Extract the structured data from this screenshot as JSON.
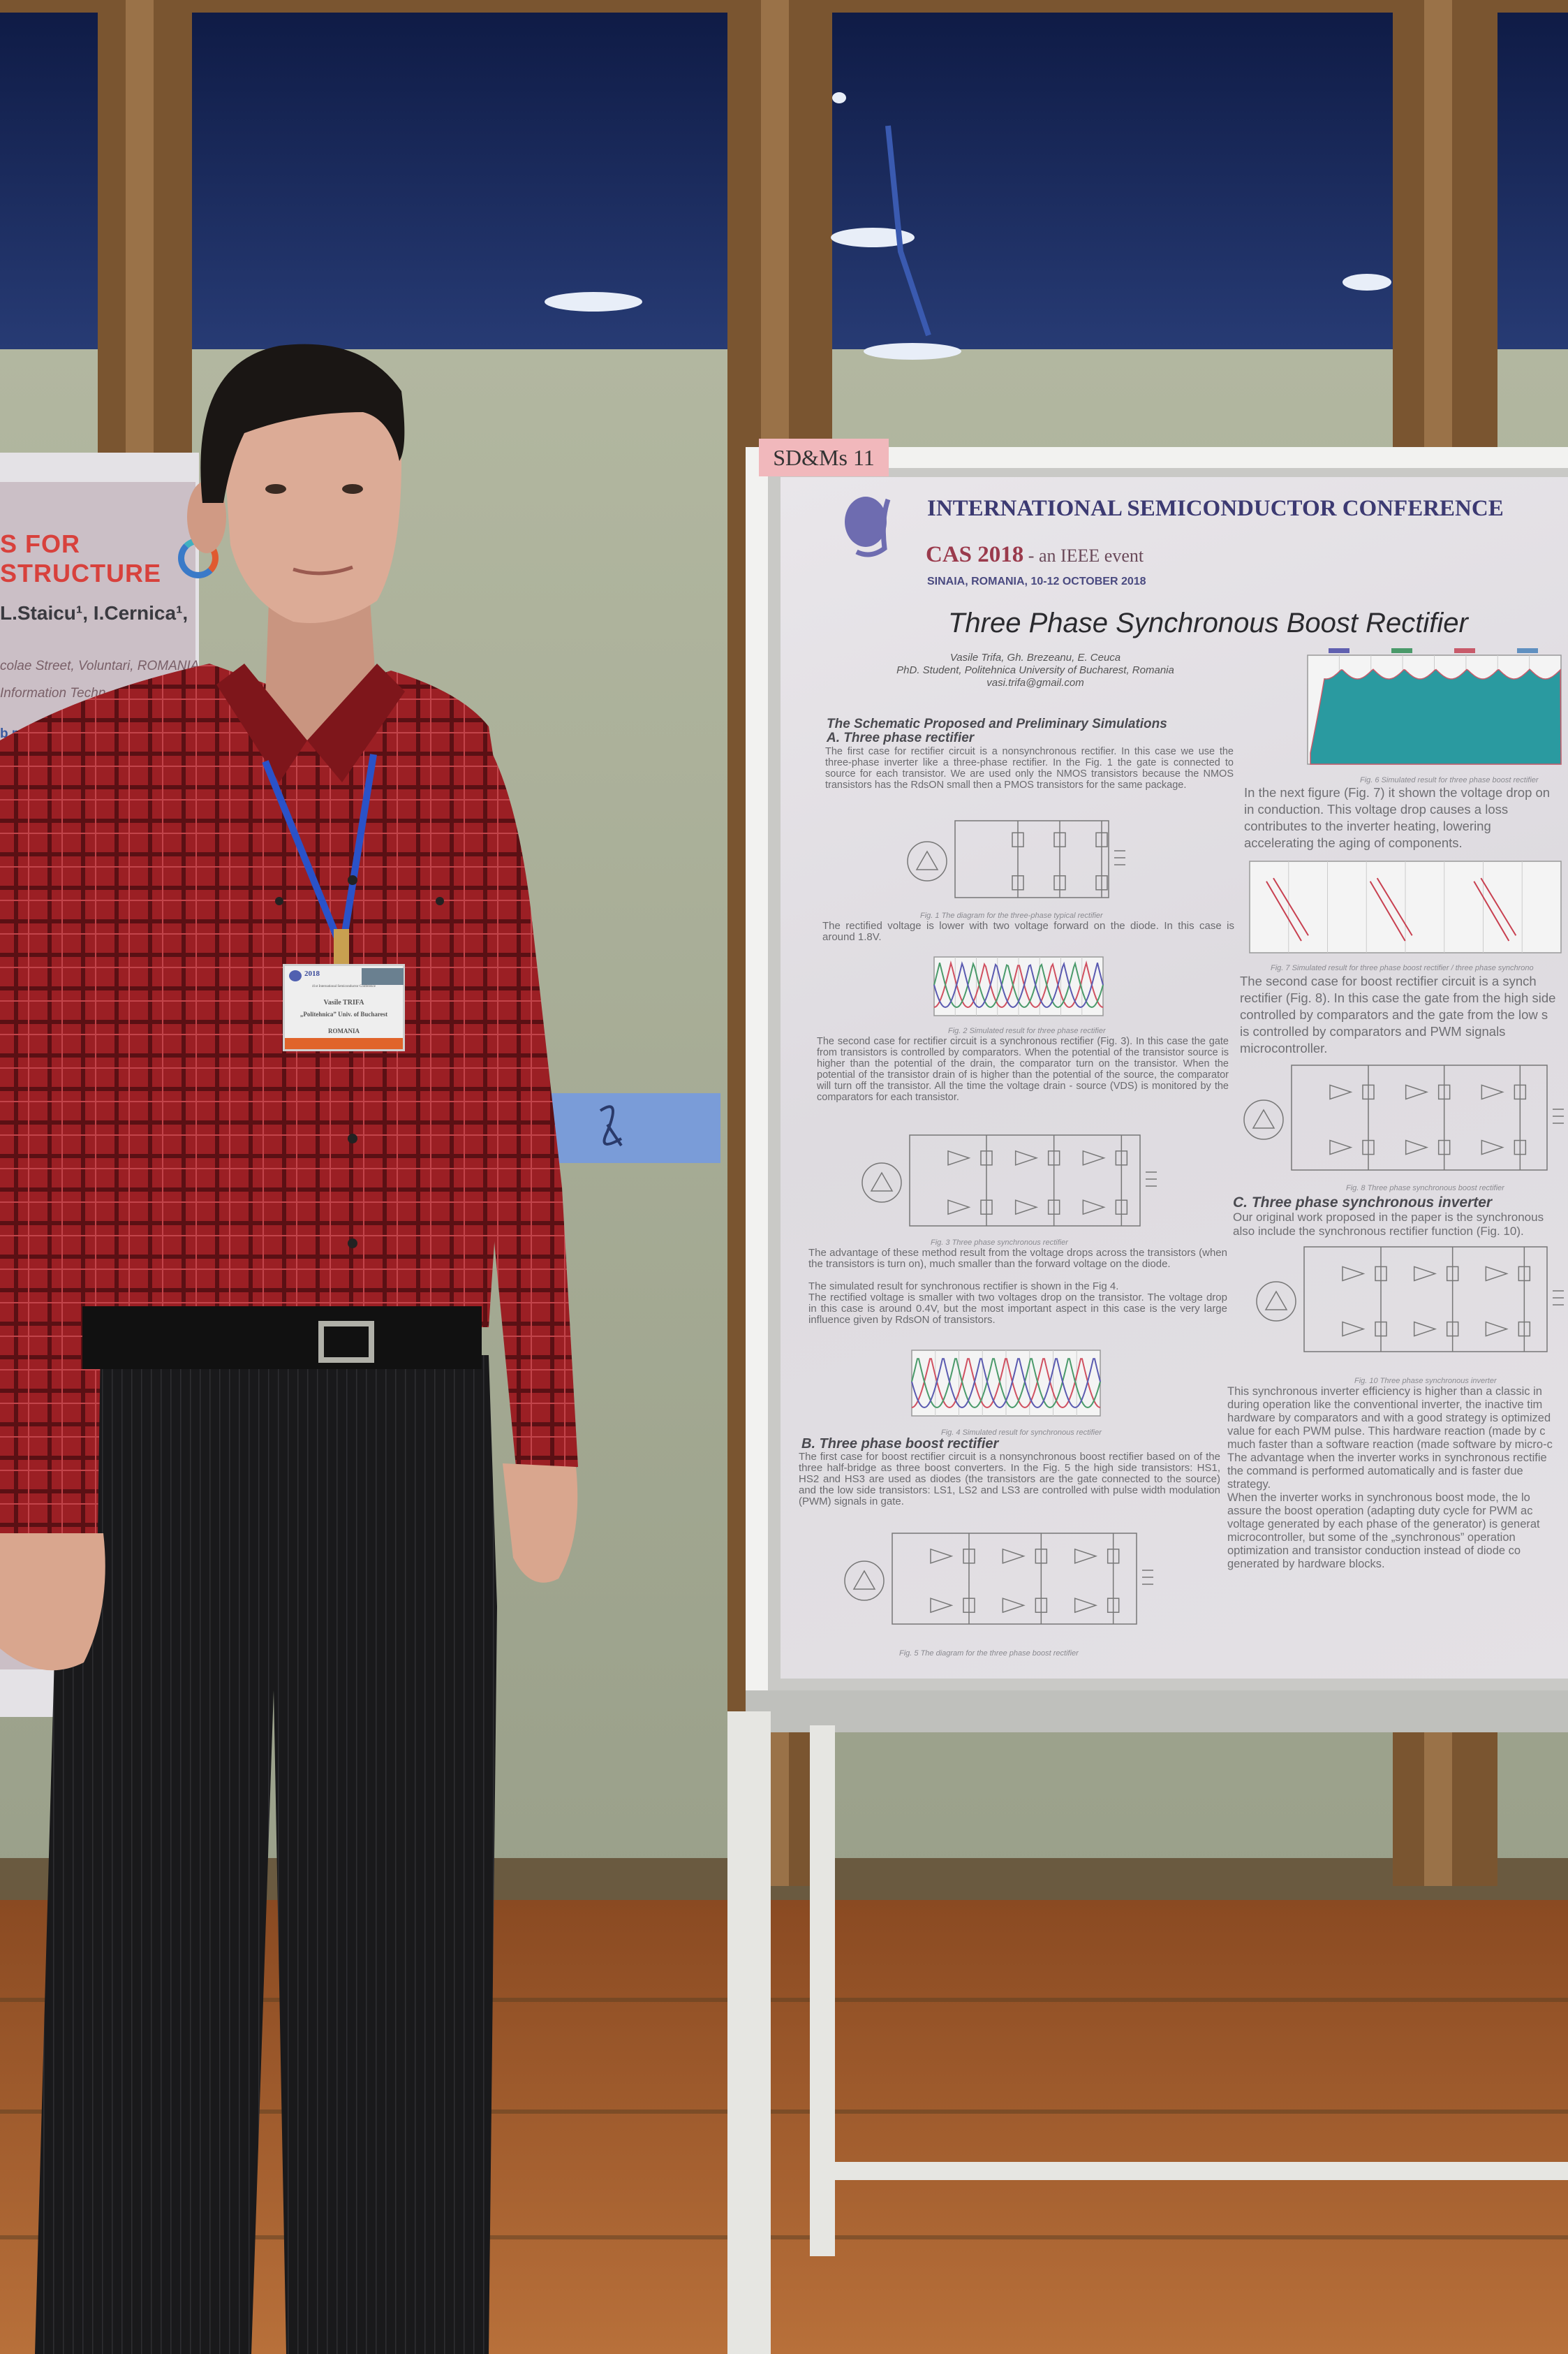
{
  "scene": {
    "colors": {
      "shirt": "#9b1f24",
      "pants": "#1a1a1c",
      "wall": "#a9ae98",
      "glass": "#1d2c5c",
      "floor": "#a05a2a",
      "frame": "#7a5530"
    }
  },
  "left_poster": {
    "title_line1": "S FOR",
    "title_line2": "STRUCTURE",
    "authors": "L.Staicu¹, I.Cernica¹,",
    "address": "colae Street, Voluntari, ROMANIA",
    "affil": "Information Techn",
    "web": "b.ro"
  },
  "board_label": "SD&Ms 11",
  "poster": {
    "conference": "INTERNATIONAL SEMICONDUCTOR CONFERENCE",
    "cas": "CAS 2018",
    "cas_suffix": " - an IEEE event",
    "location": "SINAIA, ROMANIA, 10-12 OCTOBER 2018",
    "title": "Three Phase Synchronous Boost Rectifier",
    "authors": "Vasile  Trifa, Gh. Brezeanu, E. Ceuca",
    "affiliation": "PhD. Student, Politehnica University of Bucharest, Romania",
    "email": "vasi.trifa@gmail.com",
    "section_main": "The Schematic Proposed and Preliminary Simulations",
    "section_a": "A. Three phase rectifier",
    "para_a1": "The first case for rectifier circuit is a nonsynchronous rectifier. In this case we use the three-phase inverter like a three-phase rectifier. In the Fig. 1 the gate is connected to source for each transistor. We are used only the NMOS transistors because the NMOS transistors has the RdsON small then a PMOS transistors for the same package.",
    "fig1_caption": "Fig. 1 The diagram for the three-phase typical rectifier",
    "para_a2": "The rectified voltage is lower with two voltage forward on the diode. In this case is around 1.8V.",
    "fig2_caption": "Fig. 2 Simulated result for three phase rectifier",
    "para_a3": "The second case for rectifier circuit is a synchronous rectifier (Fig. 3). In this case the gate from transistors is controlled by comparators. When the potential of the transistor source is higher than the potential of the drain, the comparator turn on the transistor. When the potential of the transistor drain of is higher than the potential of the source, the comparator will turn off the transistor. All the time the voltage drain - source (VDS) is monitored by the comparators for each transistor.",
    "fig3_caption": "Fig. 3 Three phase synchronous rectifier",
    "para_a4": "The advantage of these method result from the voltage drops across the transistors (when the transistors is turn on), much smaller than the forward voltage on the diode.",
    "para_a5": "The simulated result for synchronous rectifier is shown in the Fig 4.",
    "para_a6": "The rectified voltage is smaller with two voltages drop on the transistor. The voltage drop in this case is around 0.4V, but the most important aspect in this case is the very large influence given by RdsON of transistors.",
    "fig4_caption": "Fig. 4 Simulated result for synchronous rectifier",
    "section_b": "B. Three phase boost rectifier",
    "para_b1": "The first case for boost rectifier circuit is a nonsynchronous boost rectifier based on of the three half-bridge as three boost converters. In the Fig. 5 the high side transistors: HS1, HS2 and HS3 are used as diodes (the transistors are the gate connected to the source) and the low side transistors: LS1, LS2 and LS3 are controlled with pulse width modulation (PWM) signals in gate.",
    "fig5_caption": "Fig. 5 The diagram for the three phase boost rectifier",
    "fig6_caption": "Fig. 6 Simulated result for three phase boost rectifier",
    "right_p1": [
      "In the next figure (Fig. 7) it shown the voltage drop on",
      "in conduction. This voltage drop causes a loss",
      "contributes to the inverter heating, lowering",
      "accelerating the aging of components."
    ],
    "fig7_caption": "Fig. 7 Simulated result for three phase boost rectifier / three phase synchrono",
    "right_p2": [
      "The second case for boost rectifier circuit is a synch",
      "rectifier (Fig. 8). In this case the gate from the high side",
      "controlled by comparators and the gate from the low s",
      "is controlled by comparators and PWM signals",
      "microcontroller."
    ],
    "fig8_caption": "Fig. 8 Three phase synchronous boost rectifier",
    "section_c": "C. Three phase synchronous inverter",
    "right_p3": [
      "Our original work proposed in the paper is the synchronous",
      "also include the synchronous rectifier function (Fig. 10)."
    ],
    "fig10_caption": "Fig. 10 Three phase synchronous inverter",
    "right_p4": [
      "This synchronous inverter efficiency is higher than a classic in",
      "during operation like the conventional inverter, the inactive tim",
      "hardware by comparators and with a good strategy is optimized",
      "value for each PWM pulse. This hardware reaction (made by c",
      "much faster than a software reaction (made software by micro-c",
      "The advantage when the inverter works in synchronous rectifie",
      "the command is performed automatically and is faster due",
      "strategy.",
      "When the inverter works in synchronous boost mode, the lo",
      "assure the boost operation (adapting duty cycle for PWM ac",
      "voltage generated by each phase of the generator) is generat",
      "microcontroller, but some of the „synchronous” operation",
      "optimization and transistor conduction instead of diode co",
      "generated by hardware blocks."
    ]
  },
  "badge": {
    "year": "2018",
    "conference": "41st International Semiconductor Conference",
    "name": "Vasile TRIFA",
    "affiliation": "„Politehnica” Univ. of Bucharest",
    "country": "ROMANIA"
  }
}
